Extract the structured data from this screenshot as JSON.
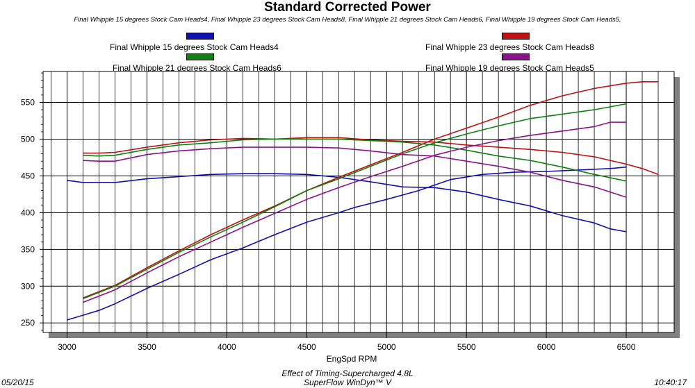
{
  "chart_data": {
    "type": "line",
    "title": "Standard Corrected Power",
    "subtitle": "Final Whipple 15 degrees Stock Cam Heads4, Final Whipple 23 degrees Stock Cam Heads8, Final Whipple 21 degrees Stock Cam Heads6, Final Whipple 19 degrees Stock Cam Heads5,",
    "xlabel": "EngSpd RPM",
    "ylabel": "",
    "xlim": [
      2850,
      6800
    ],
    "ylim": [
      237,
      592
    ],
    "xticks": [
      3000,
      3500,
      4000,
      4500,
      5000,
      5500,
      6000,
      6500
    ],
    "yticks": [
      250,
      300,
      350,
      400,
      450,
      500,
      550
    ],
    "grid": true,
    "legend_position": "top",
    "series": [
      {
        "name": "Final Whipple 15 degrees Stock Cam Heads4",
        "color": "#1010b0",
        "hp": [
          [
            3000,
            254
          ],
          [
            3200,
            267
          ],
          [
            3300,
            276
          ],
          [
            3500,
            297
          ],
          [
            3700,
            316
          ],
          [
            3900,
            336
          ],
          [
            4100,
            352
          ],
          [
            4300,
            370
          ],
          [
            4500,
            387
          ],
          [
            4700,
            400
          ],
          [
            4800,
            407
          ],
          [
            5000,
            418
          ],
          [
            5200,
            430
          ],
          [
            5400,
            445
          ],
          [
            5600,
            452
          ],
          [
            5800,
            455
          ],
          [
            6000,
            456
          ],
          [
            6200,
            458
          ],
          [
            6400,
            460
          ],
          [
            6500,
            462
          ]
        ],
        "torque": [
          [
            3000,
            444
          ],
          [
            3100,
            441
          ],
          [
            3300,
            441
          ],
          [
            3500,
            446
          ],
          [
            3700,
            449
          ],
          [
            3900,
            452
          ],
          [
            4100,
            453
          ],
          [
            4300,
            453
          ],
          [
            4500,
            452
          ],
          [
            4700,
            448
          ],
          [
            4900,
            442
          ],
          [
            5100,
            435
          ],
          [
            5300,
            434
          ],
          [
            5500,
            428
          ],
          [
            5700,
            418
          ],
          [
            5900,
            409
          ],
          [
            6100,
            396
          ],
          [
            6300,
            386
          ],
          [
            6400,
            378
          ],
          [
            6500,
            374
          ]
        ]
      },
      {
        "name": "Final Whipple 23 degrees Stock Cam Heads8",
        "color": "#c01010",
        "hp": [
          [
            3100,
            284
          ],
          [
            3300,
            301
          ],
          [
            3500,
            325
          ],
          [
            3700,
            348
          ],
          [
            3900,
            370
          ],
          [
            4100,
            390
          ],
          [
            4300,
            409
          ],
          [
            4500,
            430
          ],
          [
            4700,
            448
          ],
          [
            4900,
            465
          ],
          [
            5100,
            482
          ],
          [
            5300,
            500
          ],
          [
            5500,
            515
          ],
          [
            5700,
            530
          ],
          [
            5900,
            546
          ],
          [
            6100,
            559
          ],
          [
            6300,
            569
          ],
          [
            6500,
            576
          ],
          [
            6600,
            578
          ],
          [
            6700,
            578
          ]
        ],
        "torque": [
          [
            3100,
            481
          ],
          [
            3200,
            481
          ],
          [
            3300,
            482
          ],
          [
            3500,
            489
          ],
          [
            3700,
            495
          ],
          [
            3900,
            499
          ],
          [
            4100,
            501
          ],
          [
            4300,
            500
          ],
          [
            4500,
            502
          ],
          [
            4700,
            502
          ],
          [
            4900,
            499
          ],
          [
            5100,
            497
          ],
          [
            5300,
            496
          ],
          [
            5500,
            492
          ],
          [
            5700,
            489
          ],
          [
            5900,
            486
          ],
          [
            6100,
            482
          ],
          [
            6300,
            476
          ],
          [
            6500,
            466
          ],
          [
            6600,
            460
          ],
          [
            6700,
            452
          ]
        ]
      },
      {
        "name": "Final Whipple 21 degrees Stock Cam Heads6",
        "color": "#108010",
        "hp": [
          [
            3100,
            283
          ],
          [
            3300,
            300
          ],
          [
            3500,
            323
          ],
          [
            3700,
            346
          ],
          [
            3900,
            367
          ],
          [
            4100,
            387
          ],
          [
            4300,
            408
          ],
          [
            4500,
            430
          ],
          [
            4700,
            446
          ],
          [
            4900,
            463
          ],
          [
            5100,
            480
          ],
          [
            5300,
            495
          ],
          [
            5500,
            507
          ],
          [
            5700,
            518
          ],
          [
            5900,
            528
          ],
          [
            6100,
            534
          ],
          [
            6300,
            540
          ],
          [
            6500,
            548
          ]
        ],
        "torque": [
          [
            3100,
            478
          ],
          [
            3200,
            477
          ],
          [
            3300,
            478
          ],
          [
            3500,
            486
          ],
          [
            3700,
            492
          ],
          [
            3900,
            495
          ],
          [
            4100,
            499
          ],
          [
            4300,
            500
          ],
          [
            4500,
            500
          ],
          [
            4700,
            500
          ],
          [
            4900,
            498
          ],
          [
            5100,
            496
          ],
          [
            5300,
            492
          ],
          [
            5500,
            485
          ],
          [
            5700,
            477
          ],
          [
            5900,
            471
          ],
          [
            6100,
            462
          ],
          [
            6300,
            452
          ],
          [
            6500,
            443
          ]
        ]
      },
      {
        "name": "Final Whipple 19 degrees Stock Cam Heads5",
        "color": "#8c108c",
        "hp": [
          [
            3100,
            278
          ],
          [
            3300,
            295
          ],
          [
            3500,
            318
          ],
          [
            3700,
            340
          ],
          [
            3900,
            360
          ],
          [
            4100,
            380
          ],
          [
            4300,
            399
          ],
          [
            4500,
            418
          ],
          [
            4700,
            434
          ],
          [
            4900,
            449
          ],
          [
            5100,
            463
          ],
          [
            5300,
            478
          ],
          [
            5500,
            489
          ],
          [
            5700,
            498
          ],
          [
            5900,
            505
          ],
          [
            6100,
            511
          ],
          [
            6300,
            517
          ],
          [
            6400,
            523
          ],
          [
            6500,
            523
          ]
        ],
        "torque": [
          [
            3100,
            471
          ],
          [
            3200,
            470
          ],
          [
            3300,
            470
          ],
          [
            3500,
            479
          ],
          [
            3700,
            484
          ],
          [
            3900,
            487
          ],
          [
            4100,
            489
          ],
          [
            4300,
            489
          ],
          [
            4500,
            489
          ],
          [
            4700,
            488
          ],
          [
            4900,
            484
          ],
          [
            5100,
            479
          ],
          [
            5300,
            477
          ],
          [
            5500,
            470
          ],
          [
            5700,
            463
          ],
          [
            5900,
            455
          ],
          [
            6100,
            444
          ],
          [
            6300,
            435
          ],
          [
            6400,
            428
          ],
          [
            6500,
            421
          ]
        ]
      }
    ]
  },
  "footer": {
    "line1": "Effect of Timing-Supercharged 4.8L",
    "line2": "SuperFlow WinDyn™ V",
    "date": "05/20/15",
    "time": "10:40:17"
  }
}
